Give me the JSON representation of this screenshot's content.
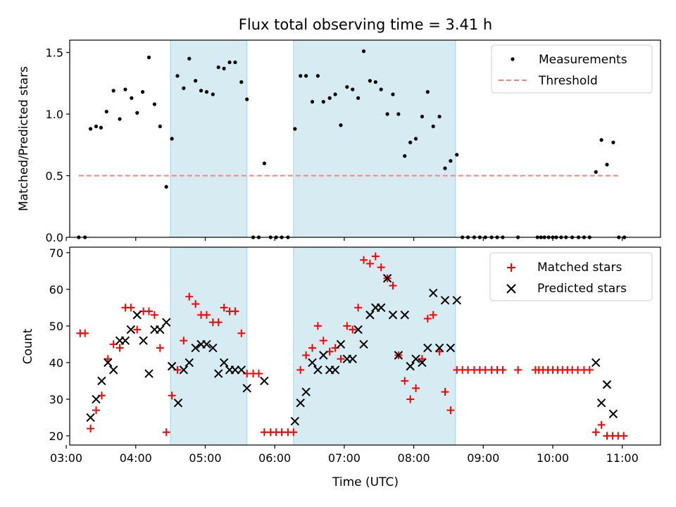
{
  "chart_data": {
    "title": "Flux total observing time = 3.41 h",
    "xlabel": "Time (UTC)",
    "x_units": "hours UTC",
    "xlim": [
      3.05,
      11.55
    ],
    "x_ticks": [
      {
        "value": 3,
        "label": "03:00"
      },
      {
        "value": 4,
        "label": "04:00"
      },
      {
        "value": 5,
        "label": "05:00"
      },
      {
        "value": 6,
        "label": "06:00"
      },
      {
        "value": 7,
        "label": "07:00"
      },
      {
        "value": 8,
        "label": "08:00"
      },
      {
        "value": 9,
        "label": "09:00"
      },
      {
        "value": 10,
        "label": "10:00"
      },
      {
        "value": 11,
        "label": "11:00"
      }
    ],
    "shaded_intervals": [
      [
        4.5,
        5.6
      ],
      [
        6.27,
        8.6
      ]
    ],
    "shade_color": "#add8e6",
    "panels": [
      {
        "type": "scatter",
        "ylabel": "Matched/Predicted stars",
        "ylim": [
          0,
          1.6
        ],
        "y_ticks": [
          "0.0",
          "0.5",
          "1.0",
          "1.5"
        ],
        "threshold": {
          "name": "Threshold",
          "value": 0.5,
          "x_range": [
            3.18,
            10.97
          ],
          "color": "#ff7f7f"
        },
        "legend": {
          "position": "top-right"
        },
        "series": [
          {
            "name": "Measurements",
            "marker": "dot",
            "color": "#000000",
            "x": [
              3.18,
              3.27,
              3.35,
              3.43,
              3.5,
              3.58,
              3.68,
              3.77,
              3.85,
              3.94,
              4.02,
              4.1,
              4.19,
              4.27,
              4.35,
              4.44,
              4.52,
              4.6,
              4.69,
              4.77,
              4.86,
              4.94,
              5.02,
              5.11,
              5.19,
              5.27,
              5.35,
              5.43,
              5.52,
              5.6,
              5.69,
              5.77,
              5.85,
              5.94,
              6.02,
              6.1,
              6.19,
              6.29,
              6.37,
              6.45,
              6.54,
              6.62,
              6.7,
              6.79,
              6.87,
              6.95,
              7.04,
              7.12,
              7.2,
              7.28,
              7.37,
              7.45,
              7.53,
              7.62,
              7.7,
              7.78,
              7.87,
              7.95,
              8.03,
              8.12,
              8.2,
              8.28,
              8.37,
              8.45,
              8.53,
              8.62,
              8.7,
              8.78,
              8.87,
              8.95,
              9.03,
              9.12,
              9.2,
              9.28,
              9.5,
              9.78,
              9.83,
              9.88,
              9.94,
              10.0,
              10.05,
              10.12,
              10.19,
              10.28,
              10.37,
              10.45,
              10.53,
              10.62,
              10.7,
              10.78,
              10.87,
              10.95,
              11.03
            ],
            "y": [
              0.0,
              0.0,
              0.88,
              0.9,
              0.89,
              1.02,
              1.19,
              0.96,
              1.2,
              1.13,
              1.01,
              1.18,
              1.46,
              1.08,
              0.9,
              0.41,
              0.8,
              1.31,
              1.21,
              1.45,
              1.27,
              1.19,
              1.18,
              1.16,
              1.38,
              1.37,
              1.42,
              1.42,
              1.26,
              1.12,
              0.0,
              0.0,
              0.6,
              0.0,
              0.0,
              0.0,
              0.0,
              0.88,
              1.31,
              1.31,
              1.1,
              1.31,
              1.1,
              1.13,
              1.16,
              0.91,
              1.22,
              1.2,
              1.13,
              1.51,
              1.27,
              1.26,
              1.2,
              1.0,
              1.16,
              1.0,
              0.66,
              0.77,
              0.8,
              0.98,
              1.18,
              0.9,
              0.98,
              0.56,
              0.62,
              0.67,
              0.0,
              0.0,
              0.0,
              0.0,
              0.0,
              0.0,
              0.0,
              0.0,
              0.0,
              0.0,
              0.0,
              0.0,
              0.0,
              0.0,
              0.0,
              0.0,
              0.0,
              0.0,
              0.0,
              0.0,
              0.0,
              0.53,
              0.79,
              0.59,
              0.77,
              0.0,
              0.0
            ]
          }
        ]
      },
      {
        "type": "scatter",
        "ylabel": "Count",
        "ylim": [
          17.5,
          71.5
        ],
        "y_ticks": [
          "20",
          "30",
          "40",
          "50",
          "60",
          "70"
        ],
        "legend": {
          "position": "top-right"
        },
        "series": [
          {
            "name": "Matched stars",
            "marker": "plus",
            "color": "#ff0000",
            "x": [
              3.2,
              3.27,
              3.35,
              3.43,
              3.51,
              3.6,
              3.68,
              3.77,
              3.85,
              3.93,
              4.02,
              4.11,
              4.19,
              4.27,
              4.35,
              4.44,
              4.52,
              4.6,
              4.69,
              4.77,
              4.86,
              4.94,
              5.02,
              5.11,
              5.19,
              5.27,
              5.35,
              5.43,
              5.52,
              5.6,
              5.69,
              5.77,
              5.85,
              5.94,
              6.02,
              6.1,
              6.19,
              6.27,
              6.37,
              6.45,
              6.54,
              6.62,
              6.7,
              6.79,
              6.87,
              6.95,
              7.04,
              7.12,
              7.2,
              7.28,
              7.37,
              7.45,
              7.53,
              7.62,
              7.7,
              7.78,
              7.87,
              7.95,
              8.03,
              8.12,
              8.2,
              8.28,
              8.37,
              8.45,
              8.53,
              8.62,
              8.7,
              8.78,
              8.87,
              8.95,
              9.03,
              9.12,
              9.2,
              9.28,
              9.5,
              9.75,
              9.8,
              9.86,
              9.93,
              10.0,
              10.07,
              10.14,
              10.21,
              10.28,
              10.36,
              10.45,
              10.53,
              10.62,
              10.7,
              10.78,
              10.86,
              10.94,
              11.02
            ],
            "y": [
              48,
              48,
              22,
              27,
              31,
              41,
              45,
              44,
              55,
              55,
              49,
              54,
              54,
              53,
              44,
              21,
              31,
              38,
              46,
              58,
              56,
              53,
              53,
              51,
              51,
              55,
              54,
              54,
              48,
              37,
              37,
              37,
              21,
              21,
              21,
              21,
              21,
              21,
              38,
              42,
              44,
              50,
              46,
              43,
              44,
              41,
              50,
              49,
              55,
              68,
              67,
              69,
              66,
              63,
              61,
              42,
              35,
              30,
              33,
              41,
              52,
              53,
              43,
              32,
              27,
              38,
              38,
              38,
              38,
              38,
              38,
              38,
              38,
              38,
              38,
              38,
              38,
              38,
              38,
              38,
              38,
              38,
              38,
              38,
              38,
              38,
              38,
              21,
              23,
              20,
              20,
              20,
              20
            ]
          },
          {
            "name": "Predicted stars",
            "marker": "x",
            "color": "#000000",
            "x": [
              3.35,
              3.43,
              3.51,
              3.6,
              3.68,
              3.77,
              3.85,
              3.93,
              4.02,
              4.11,
              4.19,
              4.27,
              4.35,
              4.44,
              4.52,
              4.61,
              4.69,
              4.77,
              4.86,
              4.94,
              5.02,
              5.11,
              5.19,
              5.27,
              5.35,
              5.43,
              5.52,
              5.6,
              5.85,
              6.29,
              6.37,
              6.45,
              6.54,
              6.62,
              6.7,
              6.79,
              6.87,
              6.95,
              7.04,
              7.12,
              7.2,
              7.28,
              7.37,
              7.45,
              7.53,
              7.62,
              7.7,
              7.78,
              7.87,
              7.95,
              8.03,
              8.12,
              8.2,
              8.28,
              8.37,
              8.45,
              8.53,
              8.62,
              10.62,
              10.7,
              10.78,
              10.87
            ],
            "y": [
              25,
              30,
              35,
              40,
              38,
              46,
              46,
              49,
              53,
              46,
              37,
              49,
              49,
              51,
              39,
              29,
              38,
              40,
              44,
              45,
              45,
              44,
              37,
              40,
              38,
              38,
              38,
              33,
              35,
              24,
              29,
              32,
              40,
              38,
              42,
              38,
              38,
              45,
              41,
              41,
              49,
              45,
              53,
              55,
              55,
              63,
              53,
              42,
              53,
              39,
              41,
              40,
              44,
              59,
              44,
              57,
              44,
              57,
              40,
              29,
              34,
              26
            ]
          }
        ]
      }
    ]
  }
}
